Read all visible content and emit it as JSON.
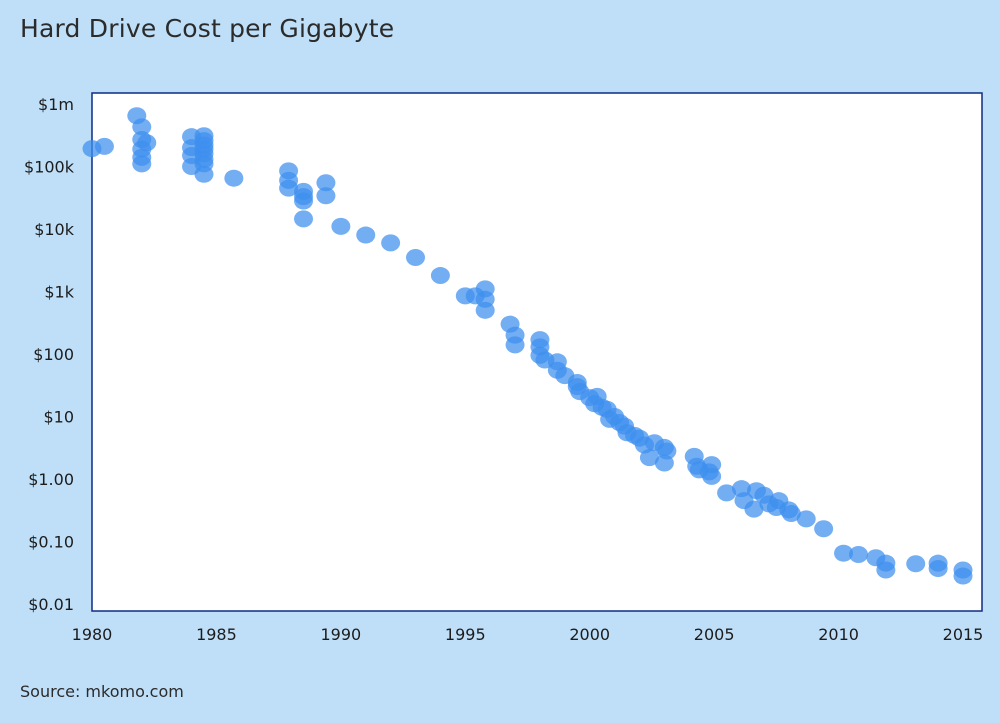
{
  "title": "Hard Drive Cost per Gigabyte",
  "source": "Source: mkomo.com",
  "colors": {
    "background": "#bfdff8",
    "plot_bg": "#ffffff",
    "frame": "#0f2c86",
    "point": "#3d8fee"
  },
  "chart_data": {
    "type": "scatter",
    "title": "Hard Drive Cost per Gigabyte",
    "xlabel": "",
    "ylabel": "",
    "xlim": [
      1980,
      2015.5
    ],
    "ylim": [
      0.01,
      1000000
    ],
    "y_scale": "log",
    "grid": false,
    "legend": "none",
    "x_ticks": [
      1980,
      1985,
      1990,
      1995,
      2000,
      2005,
      2010,
      2015
    ],
    "x_tick_labels": [
      "1980",
      "1985",
      "1990",
      "1995",
      "2000",
      "2005",
      "2010",
      "2015"
    ],
    "y_ticks": [
      0.01,
      0.1,
      1,
      10,
      100,
      1000,
      10000,
      100000,
      1000000
    ],
    "y_tick_labels": [
      "$0.01",
      "$0.10",
      "$1.00",
      "$10",
      "$100",
      "$1k",
      "$10k",
      "$100k",
      "$1m"
    ],
    "series": [
      {
        "points": [
          [
            1980.0,
            193000
          ],
          [
            1980.5,
            210000
          ],
          [
            1981.8,
            650000
          ],
          [
            1982.0,
            430000
          ],
          [
            1982.0,
            270000
          ],
          [
            1982.0,
            190000
          ],
          [
            1982.0,
            140000
          ],
          [
            1982.0,
            110000
          ],
          [
            1982.2,
            240000
          ],
          [
            1984.0,
            300000
          ],
          [
            1984.0,
            200000
          ],
          [
            1984.0,
            150000
          ],
          [
            1984.0,
            100000
          ],
          [
            1984.5,
            310000
          ],
          [
            1984.5,
            260000
          ],
          [
            1984.5,
            220000
          ],
          [
            1984.5,
            190000
          ],
          [
            1984.5,
            160000
          ],
          [
            1984.5,
            130000
          ],
          [
            1984.5,
            110000
          ],
          [
            1984.5,
            75000
          ],
          [
            1985.7,
            65000
          ],
          [
            1987.9,
            85000
          ],
          [
            1987.9,
            60000
          ],
          [
            1987.9,
            45000
          ],
          [
            1988.5,
            40000
          ],
          [
            1988.5,
            33000
          ],
          [
            1988.5,
            28000
          ],
          [
            1988.5,
            14500
          ],
          [
            1989.4,
            55000
          ],
          [
            1989.4,
            34000
          ],
          [
            1990.0,
            11000
          ],
          [
            1991.0,
            8000
          ],
          [
            1992.0,
            6000
          ],
          [
            1993.0,
            3500
          ],
          [
            1994.0,
            1800
          ],
          [
            1995.0,
            850
          ],
          [
            1995.4,
            850
          ],
          [
            1995.8,
            1100
          ],
          [
            1995.8,
            750
          ],
          [
            1995.8,
            500
          ],
          [
            1996.8,
            300
          ],
          [
            1997.0,
            200
          ],
          [
            1997.0,
            140
          ],
          [
            1998.0,
            170
          ],
          [
            1998.0,
            130
          ],
          [
            1998.0,
            95
          ],
          [
            1998.2,
            80
          ],
          [
            1998.7,
            75
          ],
          [
            1998.7,
            55
          ],
          [
            1999.0,
            45
          ],
          [
            1999.5,
            35
          ],
          [
            1999.5,
            30
          ],
          [
            1999.6,
            25
          ],
          [
            2000.0,
            20
          ],
          [
            2000.2,
            16
          ],
          [
            2000.3,
            21
          ],
          [
            2000.5,
            14
          ],
          [
            2000.7,
            13
          ],
          [
            2000.8,
            9
          ],
          [
            2001.0,
            10
          ],
          [
            2001.2,
            8
          ],
          [
            2001.4,
            7
          ],
          [
            2001.5,
            5.5
          ],
          [
            2001.8,
            5
          ],
          [
            2002.0,
            4.5
          ],
          [
            2002.2,
            3.5
          ],
          [
            2002.4,
            2.2
          ],
          [
            2002.6,
            3.8
          ],
          [
            2003.0,
            3.2
          ],
          [
            2003.1,
            2.8
          ],
          [
            2003.0,
            1.8
          ],
          [
            2004.2,
            2.3
          ],
          [
            2004.3,
            1.6
          ],
          [
            2004.4,
            1.4
          ],
          [
            2004.8,
            1.3
          ],
          [
            2004.9,
            1.1
          ],
          [
            2004.9,
            1.7
          ],
          [
            2005.5,
            0.6
          ],
          [
            2006.1,
            0.7
          ],
          [
            2006.2,
            0.45
          ],
          [
            2006.6,
            0.33
          ],
          [
            2006.7,
            0.65
          ],
          [
            2007.0,
            0.55
          ],
          [
            2007.2,
            0.4
          ],
          [
            2007.5,
            0.35
          ],
          [
            2007.6,
            0.45
          ],
          [
            2008.0,
            0.32
          ],
          [
            2008.1,
            0.28
          ],
          [
            2008.7,
            0.23
          ],
          [
            2009.4,
            0.16
          ],
          [
            2010.2,
            0.065
          ],
          [
            2010.8,
            0.062
          ],
          [
            2011.5,
            0.055
          ],
          [
            2011.9,
            0.045
          ],
          [
            2011.9,
            0.035
          ],
          [
            2013.1,
            0.044
          ],
          [
            2014.0,
            0.045
          ],
          [
            2014.0,
            0.037
          ],
          [
            2015.0,
            0.035
          ],
          [
            2015.0,
            0.028
          ]
        ]
      }
    ]
  }
}
